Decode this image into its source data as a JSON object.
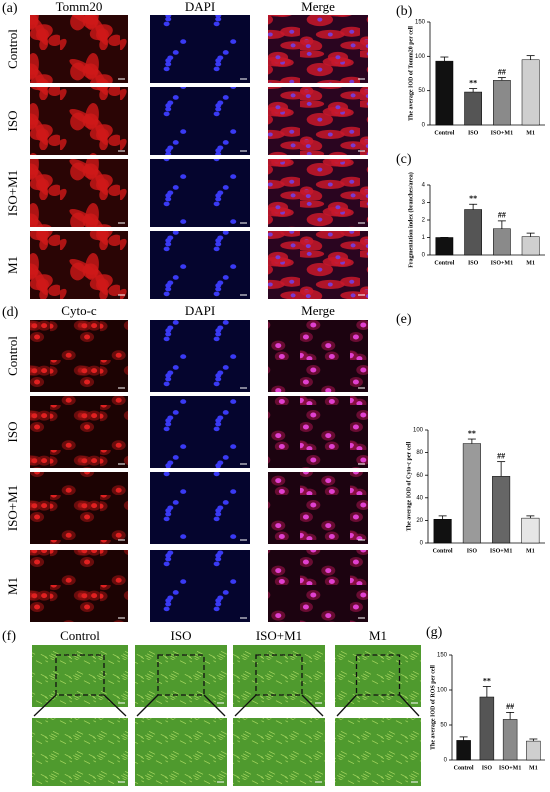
{
  "panels": {
    "a": "(a)",
    "b": "(b)",
    "c": "(c)",
    "d": "(d)",
    "e": "(e)",
    "f": "(f)",
    "g": "(g)"
  },
  "a_columns": [
    "Tomm20",
    "DAPI",
    "Merge"
  ],
  "a_rows": [
    "Control",
    "ISO",
    "ISO+M1",
    "M1"
  ],
  "d_columns": [
    "Cyto-c",
    "DAPI",
    "Merge"
  ],
  "d_rows": [
    "Control",
    "ISO",
    "ISO+M1",
    "M1"
  ],
  "f_columns": [
    "Control",
    "ISO",
    "ISO+M1",
    "M1"
  ],
  "chart_data": [
    {
      "type": "bar",
      "y_label": "The average IOD of Tomm20 per cell",
      "categories": [
        "Control",
        "ISO",
        "ISO+M1",
        "M1"
      ],
      "values": [
        93,
        48,
        65,
        95
      ],
      "errors": [
        6,
        5,
        4,
        6
      ],
      "markers": [
        null,
        "**",
        "##",
        null
      ],
      "colors": [
        "#111111",
        "#555555",
        "#8a8a8a",
        "#cfcfcf"
      ],
      "ylim": [
        0,
        150
      ],
      "yticks": [
        0,
        50,
        100,
        150
      ]
    },
    {
      "type": "bar",
      "y_label": "Fragmentation index (branches/area)",
      "categories": [
        "Control",
        "ISO",
        "ISO+M1",
        "M1"
      ],
      "values": [
        1.0,
        2.6,
        1.5,
        1.05
      ],
      "errors": [
        0,
        0.3,
        0.45,
        0.2
      ],
      "markers": [
        null,
        "**",
        "##",
        null
      ],
      "colors": [
        "#111111",
        "#555555",
        "#8a8a8a",
        "#cfcfcf"
      ],
      "ylim": [
        0,
        4
      ],
      "yticks": [
        0,
        1,
        2,
        3,
        4
      ]
    },
    {
      "type": "bar",
      "y_label": "The average IOD of Cyto-c per cell",
      "categories": [
        "Control",
        "ISO",
        "ISO+M1",
        "M1"
      ],
      "values": [
        21,
        88,
        59,
        22
      ],
      "errors": [
        3,
        4,
        13,
        2
      ],
      "markers": [
        null,
        "**",
        "##",
        null
      ],
      "colors": [
        "#111111",
        "#9a9a9a",
        "#666666",
        "#e6e6e6"
      ],
      "ylim": [
        0,
        100
      ],
      "yticks": [
        0,
        20,
        40,
        60,
        80,
        100
      ]
    },
    {
      "type": "bar",
      "y_label": "The average IOD of ROS per cell",
      "categories": [
        "Control",
        "ISO",
        "ISO+M1",
        "M1"
      ],
      "values": [
        28,
        90,
        58,
        27
      ],
      "errors": [
        5,
        15,
        10,
        3
      ],
      "markers": [
        null,
        "**",
        "##",
        null
      ],
      "colors": [
        "#111111",
        "#555555",
        "#8a8a8a",
        "#cfcfcf"
      ],
      "ylim": [
        0,
        150
      ],
      "yticks": [
        0,
        50,
        100,
        150
      ]
    }
  ]
}
